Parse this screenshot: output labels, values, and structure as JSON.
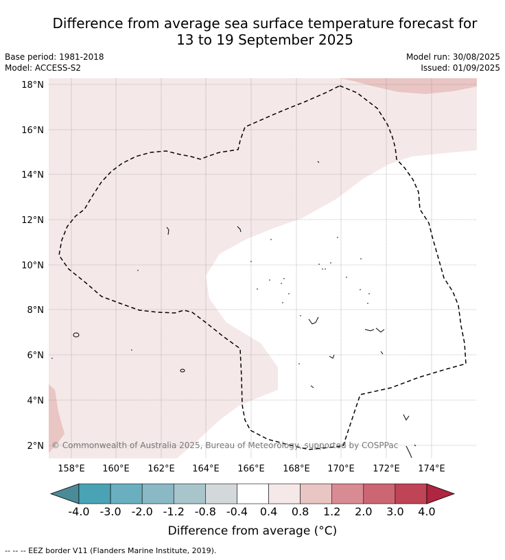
{
  "title": {
    "line1": "Difference from average sea surface temperature forecast for",
    "line2": "13 to 19 September 2025"
  },
  "meta": {
    "base_period": "Base period: 1981-2018",
    "model": "Model: ACCESS-S2",
    "model_run": "Model run: 30/08/2025",
    "issued": "Issued: 01/09/2025"
  },
  "map": {
    "lat_labels": [
      "18°N",
      "16°N",
      "14°N",
      "12°N",
      "10°N",
      "8°N",
      "6°N",
      "4°N",
      "2°N"
    ],
    "lon_labels": [
      "158°E",
      "160°E",
      "162°E",
      "164°E",
      "166°E",
      "168°E",
      "170°E",
      "172°E",
      "174°E"
    ],
    "copyright": "© Commonwealth of Australia 2025, Bureau of Meteorology, supported by COSPPac",
    "colors": {
      "anomaly_0_4_to_0_8": "#f5e8e8",
      "anomaly_0_8_to_1_2": "#e9c5c3",
      "neutral": "#ffffff",
      "eez_border": "#000000",
      "grid": "#888888"
    }
  },
  "colorbar": {
    "labels": [
      "-4.0",
      "-3.0",
      "-2.0",
      "-1.2",
      "-0.8",
      "-0.4",
      "0.4",
      "0.8",
      "1.2",
      "2.0",
      "3.0",
      "4.0"
    ],
    "colors": [
      "#4a8b98",
      "#4aa3b5",
      "#6aafc0",
      "#8bb8c5",
      "#a8c5cc",
      "#d3d8da",
      "#ffffff",
      "#f5e8e8",
      "#e9c5c3",
      "#d98b94",
      "#cc6673",
      "#bf4456",
      "#b02540"
    ],
    "title": "Difference from average (°C)"
  },
  "legend": {
    "eez": "--  --  -- EEZ border V11 (Flanders Marine Institute, 2019)."
  }
}
